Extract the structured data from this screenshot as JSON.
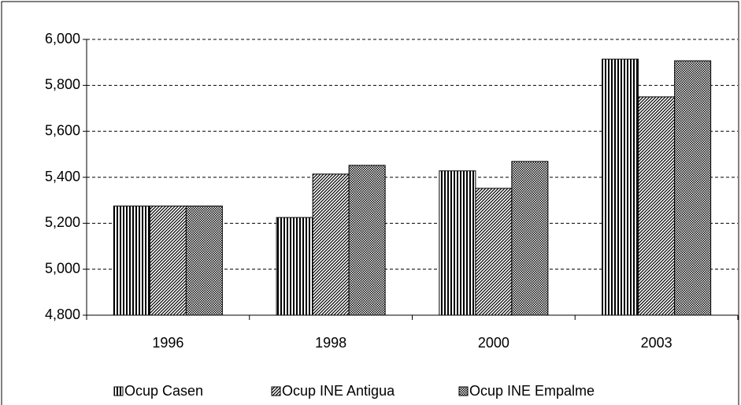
{
  "chart_data": {
    "type": "bar",
    "categories": [
      "1996",
      "1998",
      "2000",
      "2003"
    ],
    "series": [
      {
        "name": "Ocup Casen",
        "color": "#000000",
        "pattern": "vertical",
        "values": [
          5275,
          5225,
          5428,
          5914
        ]
      },
      {
        "name": "Ocup INE Antigua",
        "color": "#000000",
        "pattern": "diagonal",
        "values": [
          5275,
          5414,
          5352,
          5750
        ]
      },
      {
        "name": "Ocup INE Empalme",
        "color": "#000000",
        "pattern": "grid",
        "values": [
          5275,
          5452,
          5469,
          5907
        ]
      }
    ],
    "ylim": [
      4800,
      6000
    ],
    "yticks": [
      {
        "value": 4800,
        "label": "4,800"
      },
      {
        "value": 5000,
        "label": "5,000"
      },
      {
        "value": 5200,
        "label": "5,200"
      },
      {
        "value": 5400,
        "label": "5,400"
      },
      {
        "value": 5600,
        "label": "5,600"
      },
      {
        "value": 5800,
        "label": "5,800"
      },
      {
        "value": 6000,
        "label": "6,000"
      }
    ],
    "grid": true,
    "legend": "bottom"
  }
}
